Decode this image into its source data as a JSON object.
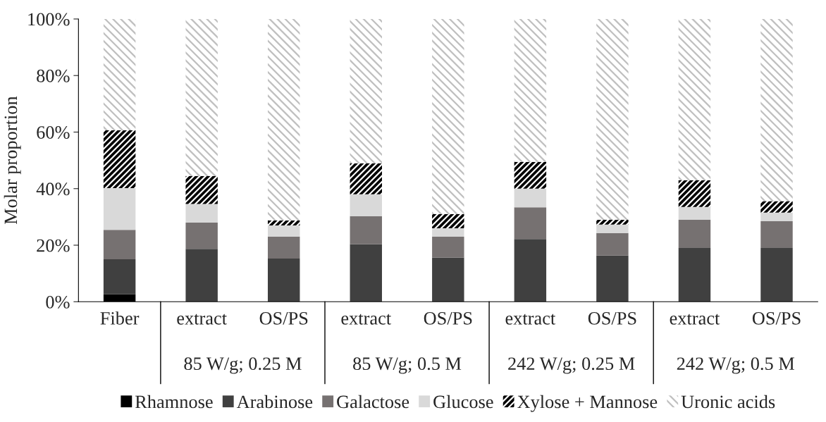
{
  "chart_data": {
    "type": "bar",
    "stacked": true,
    "ylabel": "Molar proportion",
    "categories": [
      "Fiber",
      "extract",
      "OS/PS",
      "extract",
      "OS/PS",
      "extract",
      "OS/PS",
      "extract",
      "OS/PS"
    ],
    "series": [
      {
        "name": "Rhamnose",
        "color": "#000000",
        "values": [
          2.7,
          0,
          0,
          0,
          0,
          0,
          0,
          0,
          0
        ]
      },
      {
        "name": "Arabinose",
        "color": "#404040",
        "values": [
          12.3,
          18.7,
          15.3,
          20.4,
          15.6,
          22.2,
          16.3,
          19,
          19
        ]
      },
      {
        "name": "Galactose",
        "color": "#767171",
        "values": [
          10.4,
          9.3,
          7.7,
          9.9,
          7.4,
          11.2,
          8,
          10,
          9.5
        ]
      },
      {
        "name": "Glucose",
        "color": "#d9d9d9",
        "values": [
          14.8,
          6.6,
          4,
          7.7,
          3,
          6.6,
          3,
          4.5,
          3
        ]
      },
      {
        "name": "Xylose + Mannose",
        "color": "#000000",
        "values": [
          20.4,
          9.9,
          1.7,
          11,
          5,
          9.5,
          1.7,
          9.5,
          4.1
        ]
      },
      {
        "name": "Uronic acids",
        "color": "#bfbfbf",
        "values": [
          39.4,
          55.5,
          71.3,
          51,
          69,
          50.5,
          71,
          57,
          64.4
        ]
      }
    ],
    "annotations": [
      "85 W/g; 0.25 M",
      "85 W/g; 0.5 M",
      "242 W/g; 0.25 M",
      "242 W/g; 0.5 M"
    ],
    "ylim": [
      0,
      100
    ],
    "yticks": [
      {
        "value": 0,
        "label": "0%"
      },
      {
        "value": 20,
        "label": "20%"
      },
      {
        "value": 40,
        "label": "40%"
      },
      {
        "value": 60,
        "label": "60%"
      },
      {
        "value": 80,
        "label": "80%"
      },
      {
        "value": 100,
        "label": "100%"
      }
    ],
    "grid": false,
    "legend": "bottom"
  }
}
